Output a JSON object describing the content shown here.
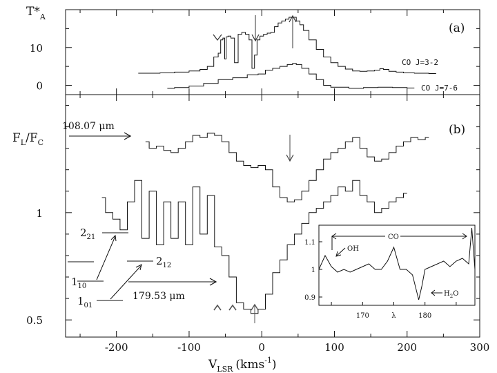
{
  "panel_a": {
    "label": "(a)",
    "ylabel": "T*",
    "ylabel_sub": "A",
    "yticks": [
      "0",
      "10"
    ],
    "legend": [
      "CO J=3-2",
      "CO J=7-6"
    ]
  },
  "panel_b": {
    "label": "(b)",
    "ylabel": "F",
    "ylabel_sub": "L",
    "ylabel_den": "/F",
    "ylabel_den_sub": "C",
    "yticks": [
      "0.5",
      "1"
    ],
    "xlabel": "V",
    "xlabel_sub": "LSR",
    "xlabel_unit": "(kms",
    "xlabel_exp": "-1",
    "xlabel_close": ")",
    "xticks": [
      "-200",
      "-100",
      "0",
      "100",
      "200",
      "300"
    ],
    "line_label_upper": "108.07 μm",
    "line_label_lower": "179.53 μm",
    "levels": [
      {
        "main": "2",
        "sub": "21"
      },
      {
        "main": "2",
        "sub": "12"
      },
      {
        "main": "1",
        "sub": "10"
      },
      {
        "main": "1",
        "sub": "01"
      }
    ]
  },
  "inset": {
    "yticks": [
      "0.9",
      "1",
      "1.1"
    ],
    "xticks": [
      "170",
      "λ",
      "180"
    ],
    "labels": {
      "oh": "OH",
      "co": "CO",
      "h2o": "H",
      "h2o_sub": "2",
      "h2o_end": "O"
    }
  },
  "chart_data": [
    {
      "type": "line",
      "title": "",
      "panel": "(a)",
      "xlabel": "V_LSR (kms^-1)",
      "ylabel": "T*_A",
      "xlim": [
        -270,
        300
      ],
      "ylim": [
        -1,
        20
      ],
      "series": [
        {
          "name": "CO J=3-2",
          "x": [
            -170,
            -150,
            -130,
            -110,
            -90,
            -80,
            -70,
            -62,
            -58,
            -55,
            -52,
            -50,
            -48,
            -45,
            -40,
            -35,
            -30,
            -25,
            -20,
            -15,
            -12,
            -8,
            -5,
            0,
            5,
            10,
            15,
            20,
            25,
            30,
            35,
            40,
            45,
            50,
            55,
            60,
            70,
            80,
            90,
            100,
            110,
            120,
            130,
            140,
            150,
            160,
            165,
            170,
            180,
            190,
            200,
            220,
            240
          ],
          "y": [
            3.2,
            3.2,
            3.3,
            3.5,
            3.8,
            4.2,
            5.0,
            7.5,
            8.5,
            12.0,
            12.5,
            7.0,
            12.8,
            13.0,
            12.5,
            6.0,
            13.5,
            14.0,
            13.5,
            12.0,
            4.5,
            8.0,
            12.0,
            13.0,
            13.5,
            13.8,
            14.0,
            15.5,
            16.5,
            17.0,
            17.5,
            18.0,
            18.0,
            17.0,
            16.0,
            14.5,
            12.0,
            9.5,
            7.5,
            6.0,
            5.0,
            4.3,
            3.8,
            3.7,
            3.8,
            4.0,
            4.4,
            4.2,
            3.7,
            3.5,
            3.3,
            3.2,
            3.1
          ]
        },
        {
          "name": "CO J=7-6",
          "x": [
            -130,
            -110,
            -90,
            -70,
            -50,
            -30,
            -10,
            0,
            10,
            20,
            30,
            40,
            45,
            50,
            60,
            70,
            80,
            90,
            100,
            110,
            130,
            150,
            170,
            190,
            210
          ],
          "y": [
            -0.8,
            -0.6,
            -0.2,
            0.5,
            1.5,
            2.0,
            2.8,
            3.0,
            4.0,
            4.5,
            5.0,
            5.5,
            5.8,
            5.5,
            4.5,
            3.0,
            1.5,
            0.0,
            -0.5,
            -0.5,
            -0.8,
            -0.6,
            -0.5,
            -0.6,
            -0.7
          ]
        }
      ]
    },
    {
      "type": "line",
      "title": "",
      "panel": "(b)",
      "xlabel": "V_LSR (kms^-1)",
      "ylabel": "F_L/F_C",
      "xlim": [
        -270,
        300
      ],
      "ylim": [
        0.42,
        1.55
      ],
      "series": [
        {
          "name": "108.07 μm",
          "x": [
            -160,
            -150,
            -140,
            -130,
            -120,
            -110,
            -100,
            -90,
            -80,
            -70,
            -60,
            -50,
            -40,
            -30,
            -20,
            -10,
            0,
            10,
            20,
            30,
            40,
            50,
            60,
            70,
            80,
            90,
            100,
            110,
            120,
            130,
            140,
            150,
            160,
            170,
            180,
            190,
            200,
            210,
            220,
            230
          ],
          "y": [
            1.33,
            1.3,
            1.31,
            1.29,
            1.28,
            1.3,
            1.33,
            1.36,
            1.35,
            1.37,
            1.36,
            1.33,
            1.28,
            1.24,
            1.22,
            1.21,
            1.22,
            1.2,
            1.12,
            1.07,
            1.05,
            1.06,
            1.1,
            1.15,
            1.2,
            1.25,
            1.28,
            1.3,
            1.33,
            1.35,
            1.3,
            1.26,
            1.24,
            1.25,
            1.28,
            1.31,
            1.33,
            1.35,
            1.34,
            1.35
          ]
        },
        {
          "name": "179.53 μm",
          "x": [
            -220,
            -210,
            -200,
            -190,
            -180,
            -170,
            -160,
            -150,
            -140,
            -130,
            -120,
            -110,
            -100,
            -90,
            -80,
            -70,
            -60,
            -50,
            -40,
            -30,
            -20,
            -10,
            0,
            10,
            20,
            30,
            40,
            50,
            60,
            70,
            80,
            90,
            100,
            110,
            120,
            130,
            140,
            150,
            160,
            170,
            180,
            190,
            200
          ],
          "y": [
            1.07,
            1.0,
            0.97,
            0.92,
            1.05,
            1.15,
            0.88,
            1.1,
            0.85,
            1.05,
            0.88,
            1.05,
            0.85,
            1.12,
            0.9,
            1.08,
            0.84,
            0.8,
            0.7,
            0.58,
            0.55,
            0.53,
            0.55,
            0.62,
            0.72,
            0.78,
            0.85,
            0.9,
            0.95,
            1.0,
            1.02,
            1.05,
            1.08,
            1.12,
            1.1,
            1.15,
            1.08,
            1.05,
            1.0,
            1.02,
            1.05,
            1.07,
            1.09
          ]
        }
      ]
    },
    {
      "type": "line",
      "title": "",
      "panel": "inset",
      "xlabel": "λ",
      "ylabel": "",
      "xlim": [
        163,
        188
      ],
      "ylim": [
        0.87,
        1.16
      ],
      "series": [
        {
          "name": "",
          "x": [
            163,
            164,
            165,
            166,
            167,
            168,
            169,
            170,
            171,
            172,
            173,
            174,
            175,
            176,
            177,
            178,
            179,
            179.5,
            180,
            181,
            182,
            183,
            184,
            185,
            186,
            187,
            187.5,
            188
          ],
          "y": [
            1.0,
            1.05,
            1.01,
            0.99,
            1.0,
            0.99,
            1.0,
            1.01,
            1.02,
            1.0,
            1.0,
            1.03,
            1.08,
            1.0,
            1.0,
            0.98,
            0.89,
            0.94,
            1.0,
            1.01,
            1.02,
            1.03,
            1.01,
            1.03,
            1.04,
            1.02,
            1.15,
            1.0
          ]
        }
      ]
    }
  ]
}
